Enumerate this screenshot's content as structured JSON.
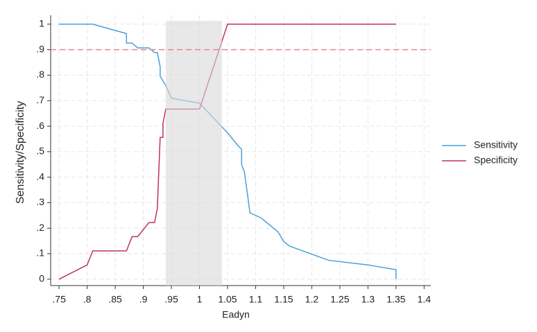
{
  "chart_data": {
    "type": "line",
    "x_label": "Eadyn",
    "y_label": "Sensitivity/Specificity",
    "xlim": [
      0.735,
      1.412
    ],
    "ylim": [
      -0.025,
      1.035
    ],
    "xticks": [
      {
        "value": 0.75,
        "label": ".75"
      },
      {
        "value": 0.8,
        "label": ".8"
      },
      {
        "value": 0.85,
        "label": ".85"
      },
      {
        "value": 0.9,
        "label": ".9"
      },
      {
        "value": 0.95,
        "label": ".95"
      },
      1,
      1.05,
      1.1,
      1.15,
      1.2,
      1.25,
      1.3,
      1.35,
      1.4
    ],
    "yticks": [
      0,
      {
        "value": 0.1,
        "label": ".1"
      },
      {
        "value": 0.2,
        "label": ".2"
      },
      {
        "value": 0.3,
        "label": ".3"
      },
      {
        "value": 0.4,
        "label": ".4"
      },
      {
        "value": 0.5,
        "label": ".5"
      },
      {
        "value": 0.6,
        "label": ".6"
      },
      {
        "value": 0.7,
        "label": ".7"
      },
      {
        "value": 0.8,
        "label": ".8"
      },
      {
        "value": 0.9,
        "label": ".9"
      },
      1
    ],
    "grid": true,
    "legend": "right",
    "reference_line": {
      "y": 0.9,
      "color": "#e8858a"
    },
    "shaded_region": {
      "x": [
        0.94,
        1.04
      ],
      "color": "#d9d9d9"
    },
    "series": [
      {
        "name": "Sensitivity",
        "color": "#4a9fd8",
        "x": [
          0.75,
          0.81,
          0.87,
          0.87,
          0.88,
          0.89,
          0.91,
          0.92,
          0.925,
          0.93,
          0.93,
          0.935,
          0.94,
          0.95,
          1.0,
          1.01,
          1.05,
          1.07,
          1.075,
          1.075,
          1.08,
          1.09,
          1.11,
          1.14,
          1.15,
          1.16,
          1.23,
          1.3,
          1.35,
          1.35
        ],
        "values": [
          1,
          1,
          0.963,
          0.926,
          0.926,
          0.907,
          0.907,
          0.889,
          0.889,
          0.833,
          0.796,
          0.778,
          0.759,
          0.71,
          0.69,
          0.667,
          0.574,
          0.52,
          0.51,
          0.45,
          0.42,
          0.26,
          0.24,
          0.185,
          0.148,
          0.13,
          0.074,
          0.056,
          0.037,
          0
        ]
      },
      {
        "name": "Specificity",
        "color": "#c0315e",
        "x": [
          0.75,
          0.8,
          0.81,
          0.87,
          0.88,
          0.89,
          0.91,
          0.92,
          0.925,
          0.93,
          0.935,
          0.935,
          0.94,
          1.0,
          1.05,
          1.35
        ],
        "values": [
          0,
          0.056,
          0.111,
          0.111,
          0.167,
          0.167,
          0.222,
          0.222,
          0.278,
          0.556,
          0.556,
          0.611,
          0.667,
          0.667,
          1,
          1
        ]
      }
    ]
  }
}
